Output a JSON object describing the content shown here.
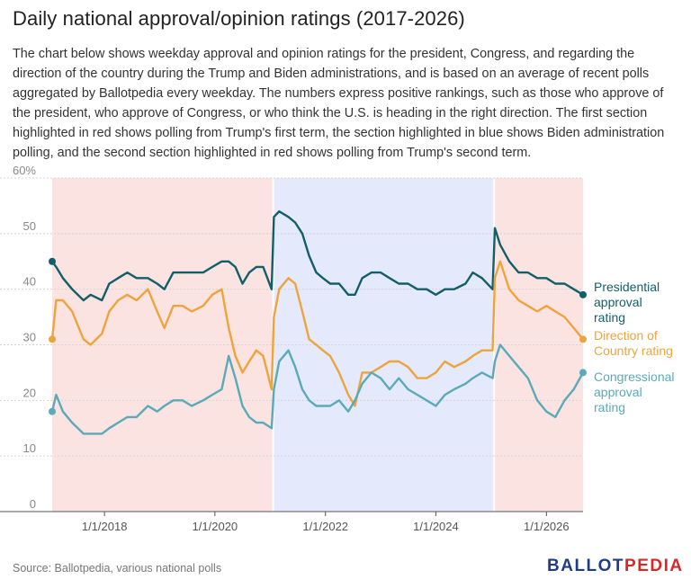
{
  "header": {
    "title": "Daily national approval/opinion ratings (2017-2026)",
    "description": "The chart below shows weekday approval and opinion ratings for the president, Congress, and regarding the direction of the country during the Trump and Biden administrations, and is based on an average of recent polls aggregated by Ballotpedia every weekday. The numbers express positive rankings, such as those who approve of the president, who approve of Congress, or who think the U.S. is heading in the right direction. The first section highlighted in red shows polling from Trump's first term, the section highlighted in blue shows Biden administration polling, and the second section highlighted in red shows polling from Trump's second term."
  },
  "footer": {
    "source": "Source: Ballotpedia, various national polls",
    "logo_part1": "BALLOT",
    "logo_part2": "PEDIA"
  },
  "colors": {
    "presidential": "#135f68",
    "direction": "#eea43c",
    "congress": "#5aaab8",
    "trump_band": "#fbe3e1",
    "biden_band": "#e4e9fb"
  },
  "chart_data": {
    "type": "line",
    "title": "Daily national approval/opinion ratings (2017-2026)",
    "xlabel": "",
    "ylabel": "",
    "xlim": [
      "2017-01-20",
      "2026-08-31"
    ],
    "ylim": [
      0,
      60
    ],
    "y_ticks": [
      "0",
      "10",
      "20",
      "30",
      "40",
      "50",
      "60%"
    ],
    "x_ticks": [
      "1/1/2018",
      "1/1/2020",
      "1/1/2022",
      "1/1/2024",
      "1/1/2026"
    ],
    "grid": true,
    "legend": "end-of-line labels (right)",
    "bands": [
      {
        "label": "Trump first term",
        "start": "2017-01-20",
        "end": "2021-01-20",
        "color": "red"
      },
      {
        "label": "Biden administration",
        "start": "2021-01-20",
        "end": "2025-01-20",
        "color": "blue"
      },
      {
        "label": "Trump second term",
        "start": "2025-01-20",
        "end": "2026-08-31",
        "color": "red"
      }
    ],
    "series": [
      {
        "name": "Presidential approval rating",
        "label_lines": [
          "Presidential",
          "approval",
          "rating"
        ],
        "points": [
          [
            "2017-01-20",
            45
          ],
          [
            "2017-02-15",
            44
          ],
          [
            "2017-04-01",
            42
          ],
          [
            "2017-06-01",
            40
          ],
          [
            "2017-08-15",
            38
          ],
          [
            "2017-10-01",
            39
          ],
          [
            "2017-12-15",
            38
          ],
          [
            "2018-02-01",
            41
          ],
          [
            "2018-04-01",
            42
          ],
          [
            "2018-06-01",
            43
          ],
          [
            "2018-08-01",
            42
          ],
          [
            "2018-10-15",
            42
          ],
          [
            "2018-12-15",
            41
          ],
          [
            "2019-02-01",
            40
          ],
          [
            "2019-04-01",
            43
          ],
          [
            "2019-06-01",
            43
          ],
          [
            "2019-08-01",
            43
          ],
          [
            "2019-10-15",
            43
          ],
          [
            "2019-12-15",
            44
          ],
          [
            "2020-02-15",
            45
          ],
          [
            "2020-04-01",
            45
          ],
          [
            "2020-05-15",
            44
          ],
          [
            "2020-07-01",
            41
          ],
          [
            "2020-08-15",
            43
          ],
          [
            "2020-10-01",
            44
          ],
          [
            "2020-11-15",
            44
          ],
          [
            "2021-01-10",
            40
          ],
          [
            "2021-01-25",
            53
          ],
          [
            "2021-03-01",
            54
          ],
          [
            "2021-05-01",
            53
          ],
          [
            "2021-06-15",
            52
          ],
          [
            "2021-08-01",
            50
          ],
          [
            "2021-09-15",
            46
          ],
          [
            "2021-11-01",
            43
          ],
          [
            "2021-12-15",
            42
          ],
          [
            "2022-02-01",
            41
          ],
          [
            "2022-04-01",
            41
          ],
          [
            "2022-06-01",
            39
          ],
          [
            "2022-07-15",
            39
          ],
          [
            "2022-09-01",
            42
          ],
          [
            "2022-11-01",
            43
          ],
          [
            "2023-01-01",
            43
          ],
          [
            "2023-03-01",
            42
          ],
          [
            "2023-05-01",
            41
          ],
          [
            "2023-07-01",
            41
          ],
          [
            "2023-09-01",
            40
          ],
          [
            "2023-11-01",
            40
          ],
          [
            "2024-01-01",
            39
          ],
          [
            "2024-03-01",
            40
          ],
          [
            "2024-05-01",
            40
          ],
          [
            "2024-07-15",
            41
          ],
          [
            "2024-09-01",
            43
          ],
          [
            "2024-11-01",
            42
          ],
          [
            "2025-01-10",
            40
          ],
          [
            "2025-01-25",
            51
          ],
          [
            "2025-03-01",
            48
          ],
          [
            "2025-05-01",
            45
          ],
          [
            "2025-07-01",
            43
          ],
          [
            "2025-09-01",
            43
          ],
          [
            "2025-11-01",
            42
          ],
          [
            "2026-01-01",
            42
          ],
          [
            "2026-03-01",
            41
          ],
          [
            "2026-05-01",
            41
          ],
          [
            "2026-07-01",
            40
          ],
          [
            "2026-08-31",
            39
          ]
        ]
      },
      {
        "name": "Direction of Country rating",
        "label_lines": [
          "Direction of",
          "Country rating"
        ],
        "points": [
          [
            "2017-01-20",
            31
          ],
          [
            "2017-02-15",
            38
          ],
          [
            "2017-04-01",
            38
          ],
          [
            "2017-06-01",
            36
          ],
          [
            "2017-08-15",
            31
          ],
          [
            "2017-10-01",
            30
          ],
          [
            "2017-12-15",
            32
          ],
          [
            "2018-02-01",
            36
          ],
          [
            "2018-04-01",
            38
          ],
          [
            "2018-06-01",
            39
          ],
          [
            "2018-08-01",
            38
          ],
          [
            "2018-10-15",
            40
          ],
          [
            "2018-12-15",
            36
          ],
          [
            "2019-02-01",
            33
          ],
          [
            "2019-04-01",
            37
          ],
          [
            "2019-06-01",
            37
          ],
          [
            "2019-08-01",
            36
          ],
          [
            "2019-10-15",
            37
          ],
          [
            "2019-12-15",
            39
          ],
          [
            "2020-02-15",
            40
          ],
          [
            "2020-04-01",
            33
          ],
          [
            "2020-05-15",
            28
          ],
          [
            "2020-07-01",
            25
          ],
          [
            "2020-08-15",
            27
          ],
          [
            "2020-10-01",
            29
          ],
          [
            "2020-11-15",
            28
          ],
          [
            "2021-01-10",
            22
          ],
          [
            "2021-01-25",
            35
          ],
          [
            "2021-03-01",
            40
          ],
          [
            "2021-05-01",
            42
          ],
          [
            "2021-06-15",
            41
          ],
          [
            "2021-08-01",
            36
          ],
          [
            "2021-09-15",
            31
          ],
          [
            "2021-11-01",
            30
          ],
          [
            "2021-12-15",
            29
          ],
          [
            "2022-02-01",
            28
          ],
          [
            "2022-04-01",
            25
          ],
          [
            "2022-06-01",
            21
          ],
          [
            "2022-07-15",
            19
          ],
          [
            "2022-09-01",
            25
          ],
          [
            "2022-11-01",
            25
          ],
          [
            "2023-01-01",
            26
          ],
          [
            "2023-03-01",
            27
          ],
          [
            "2023-05-01",
            27
          ],
          [
            "2023-07-01",
            26
          ],
          [
            "2023-09-01",
            24
          ],
          [
            "2023-11-01",
            24
          ],
          [
            "2024-01-01",
            25
          ],
          [
            "2024-03-01",
            27
          ],
          [
            "2024-05-01",
            26
          ],
          [
            "2024-07-15",
            27
          ],
          [
            "2024-09-01",
            28
          ],
          [
            "2024-11-01",
            29
          ],
          [
            "2025-01-10",
            29
          ],
          [
            "2025-01-25",
            42
          ],
          [
            "2025-03-01",
            45
          ],
          [
            "2025-05-01",
            40
          ],
          [
            "2025-07-01",
            38
          ],
          [
            "2025-09-01",
            37
          ],
          [
            "2025-11-01",
            36
          ],
          [
            "2026-01-01",
            37
          ],
          [
            "2026-03-01",
            36
          ],
          [
            "2026-05-01",
            35
          ],
          [
            "2026-07-01",
            33
          ],
          [
            "2026-08-31",
            31
          ]
        ]
      },
      {
        "name": "Congressional approval rating",
        "label_lines": [
          "Congressional",
          "approval",
          "rating"
        ],
        "points": [
          [
            "2017-01-20",
            18
          ],
          [
            "2017-02-15",
            21
          ],
          [
            "2017-04-01",
            18
          ],
          [
            "2017-06-01",
            16
          ],
          [
            "2017-08-15",
            14
          ],
          [
            "2017-10-01",
            14
          ],
          [
            "2017-12-15",
            14
          ],
          [
            "2018-02-01",
            15
          ],
          [
            "2018-04-01",
            16
          ],
          [
            "2018-06-01",
            17
          ],
          [
            "2018-08-01",
            17
          ],
          [
            "2018-10-15",
            19
          ],
          [
            "2018-12-15",
            18
          ],
          [
            "2019-02-01",
            19
          ],
          [
            "2019-04-01",
            20
          ],
          [
            "2019-06-01",
            20
          ],
          [
            "2019-08-01",
            19
          ],
          [
            "2019-10-15",
            20
          ],
          [
            "2019-12-15",
            21
          ],
          [
            "2020-02-15",
            22
          ],
          [
            "2020-04-01",
            28
          ],
          [
            "2020-05-15",
            24
          ],
          [
            "2020-07-01",
            19
          ],
          [
            "2020-08-15",
            17
          ],
          [
            "2020-10-01",
            16
          ],
          [
            "2020-11-15",
            16
          ],
          [
            "2021-01-10",
            15
          ],
          [
            "2021-01-25",
            22
          ],
          [
            "2021-03-01",
            27
          ],
          [
            "2021-05-01",
            29
          ],
          [
            "2021-06-15",
            26
          ],
          [
            "2021-08-01",
            22
          ],
          [
            "2021-09-15",
            20
          ],
          [
            "2021-11-01",
            19
          ],
          [
            "2021-12-15",
            19
          ],
          [
            "2022-02-01",
            19
          ],
          [
            "2022-04-01",
            20
          ],
          [
            "2022-06-01",
            18
          ],
          [
            "2022-07-15",
            20
          ],
          [
            "2022-09-01",
            23
          ],
          [
            "2022-11-01",
            25
          ],
          [
            "2023-01-01",
            24
          ],
          [
            "2023-03-01",
            22
          ],
          [
            "2023-05-01",
            24
          ],
          [
            "2023-07-01",
            22
          ],
          [
            "2023-09-01",
            21
          ],
          [
            "2023-11-01",
            20
          ],
          [
            "2024-01-01",
            19
          ],
          [
            "2024-03-01",
            21
          ],
          [
            "2024-05-01",
            22
          ],
          [
            "2024-07-15",
            23
          ],
          [
            "2024-09-01",
            24
          ],
          [
            "2024-11-01",
            25
          ],
          [
            "2025-01-10",
            24
          ],
          [
            "2025-01-25",
            27
          ],
          [
            "2025-03-01",
            30
          ],
          [
            "2025-05-01",
            28
          ],
          [
            "2025-07-01",
            26
          ],
          [
            "2025-09-01",
            24
          ],
          [
            "2025-11-01",
            20
          ],
          [
            "2026-01-01",
            18
          ],
          [
            "2026-03-01",
            17
          ],
          [
            "2026-05-01",
            20
          ],
          [
            "2026-07-01",
            22
          ],
          [
            "2026-08-31",
            25
          ]
        ]
      }
    ]
  }
}
